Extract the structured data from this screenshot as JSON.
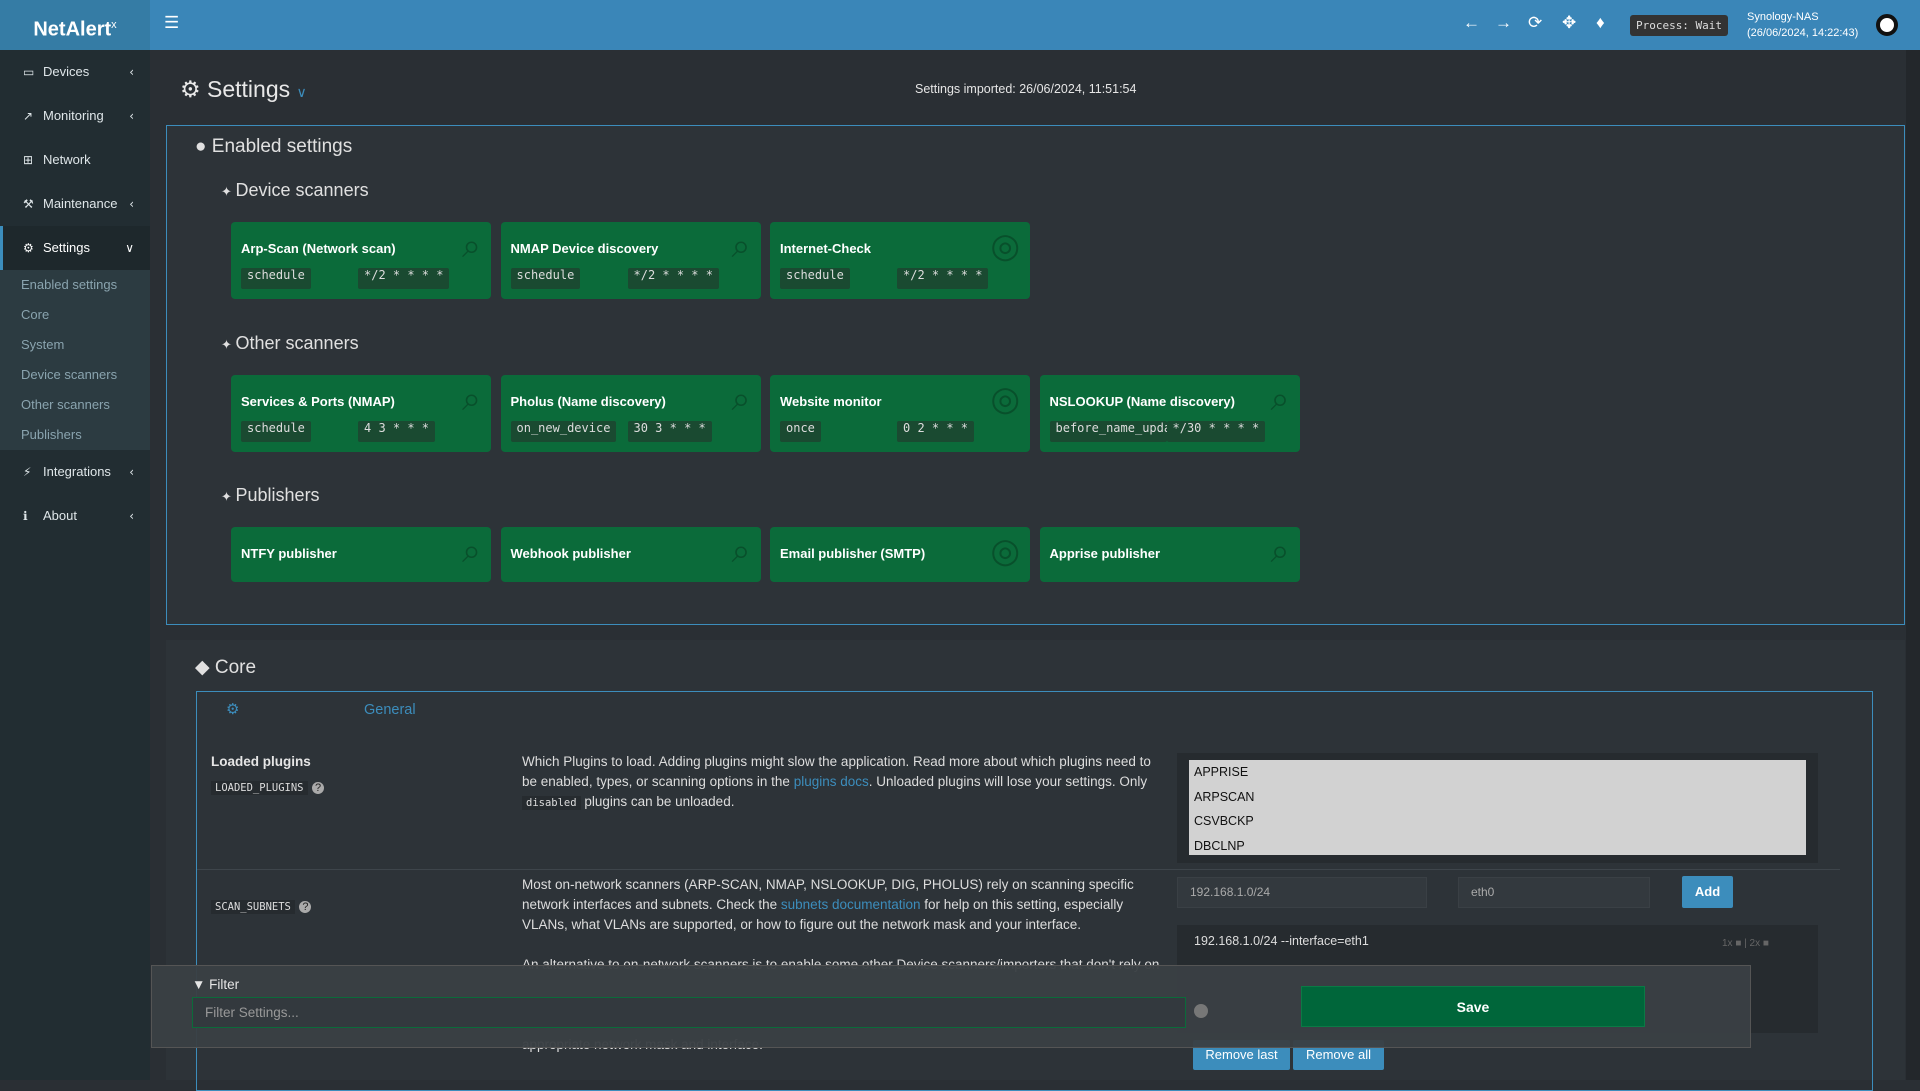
{
  "header": {
    "logo": "NetAlert",
    "logo_sup": "x",
    "process": "Process: Wait",
    "host": "Synology-NAS",
    "host_time": "(26/06/2024, 14:22:43)"
  },
  "sidebar": {
    "items": [
      {
        "label": "Devices"
      },
      {
        "label": "Monitoring"
      },
      {
        "label": "Network"
      },
      {
        "label": "Maintenance"
      },
      {
        "label": "Settings",
        "children": [
          "Enabled settings",
          "Core",
          "System",
          "Device scanners",
          "Other scanners",
          "Publishers"
        ]
      },
      {
        "label": "Integrations"
      },
      {
        "label": "About"
      }
    ]
  },
  "page": {
    "title": "Settings",
    "imported": "Settings imported: 26/06/2024, 11:51:54"
  },
  "enabled": {
    "title": "Enabled settings",
    "groups": [
      {
        "title": "Device scanners",
        "cards": [
          {
            "name": "Arp-Scan (Network scan)",
            "mode": "schedule",
            "schedule": "*/2 * * * *"
          },
          {
            "name": "NMAP Device discovery",
            "mode": "schedule",
            "schedule": "*/2 * * * *"
          },
          {
            "name": "Internet-Check",
            "mode": "schedule",
            "schedule": "*/2 * * * *"
          }
        ]
      },
      {
        "title": "Other scanners",
        "cards": [
          {
            "name": "Services & Ports (NMAP)",
            "mode": "schedule",
            "schedule": "4 3 * * *"
          },
          {
            "name": "Pholus (Name discovery)",
            "mode": "on_new_device",
            "schedule": "30 3 * * *"
          },
          {
            "name": "Website monitor",
            "mode": "once",
            "schedule": "0 2 * * *"
          },
          {
            "name": "NSLOOKUP (Name discovery)",
            "mode": "before_name_updates",
            "schedule": "*/30 * * * *"
          }
        ]
      },
      {
        "title": "Publishers",
        "cards": [
          {
            "name": "NTFY publisher"
          },
          {
            "name": "Webhook publisher"
          },
          {
            "name": "Email publisher (SMTP)"
          },
          {
            "name": "Apprise publisher"
          }
        ]
      }
    ]
  },
  "core": {
    "title": "Core",
    "tab": "General",
    "loaded_plugins": {
      "name": "Loaded plugins",
      "code": "LOADED_PLUGINS",
      "description": [
        "Which Plugins to load. Adding plugins might slow the application. Read more about which plugins need to be enabled, types, or scanning options in the ",
        {
          "link": "plugins docs"
        },
        ". Unloaded plugins will lose your settings. Only ",
        {
          "code": "disabled"
        },
        " plugins can be unloaded."
      ],
      "options": [
        "APPRISE",
        "ARPSCAN",
        "CSVBCKP",
        "DBCLNP"
      ]
    },
    "scan_subnets": {
      "code": "SCAN_SUBNETS",
      "description": [
        "Most on-network scanners (ARP-SCAN, NMAP, NSLOOKUP, DIG, PHOLUS) rely on scanning specific network interfaces and subnets. Check the ",
        {
          "link": "subnets documentation"
        },
        " for help on this setting, especially VLANs, what VLANs are supported, or how to figure out the network mask and your interface."
      ],
      "description_2": "An alternative to on-network scanners is to enable some other Device scanners/importers that don't rely on",
      "description_3": "appropriate network mask and interface.",
      "subnet_input": "192.168.1.0/24",
      "interface_input": "eth0",
      "add": "Add",
      "entries": [
        "192.168.1.0/24 --interface=eth1"
      ],
      "x1": "1x",
      "x2": "2x",
      "remove_last": "Remove last",
      "remove_all": "Remove all"
    }
  },
  "filter": {
    "label": "Filter",
    "placeholder": "Filter Settings...",
    "save": "Save"
  }
}
